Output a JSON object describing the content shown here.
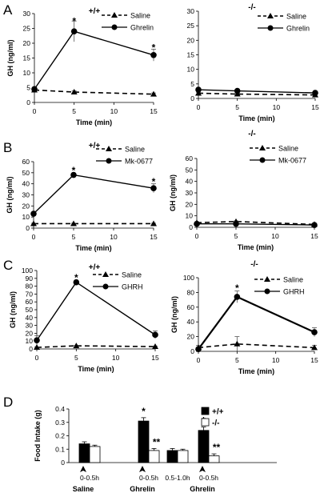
{
  "figure": {
    "panel_letters": [
      "A",
      "B",
      "C",
      "D"
    ]
  },
  "chart_data": [
    {
      "panel": "A",
      "genotype": "+/+",
      "type": "line",
      "x": [
        0,
        5,
        15
      ],
      "xticks": [
        0,
        5,
        10,
        15
      ],
      "xlabel": "Time (min)",
      "ylabel": "GH (ng/ml)",
      "ylim": [
        0,
        30
      ],
      "yticks": [
        0,
        5,
        10,
        15,
        20,
        25,
        30
      ],
      "legend": "top-right",
      "series": [
        {
          "name": "Saline",
          "style": "dashed-triangle",
          "values": [
            4.2,
            3.5,
            2.8
          ],
          "errors": [
            0.4,
            0.4,
            0.4
          ]
        },
        {
          "name": "Ghrelin",
          "style": "solid-circle",
          "values": [
            4.5,
            24,
            16
          ],
          "errors": [
            0.5,
            3.5,
            2
          ]
        }
      ],
      "annotations": [
        {
          "x": 5,
          "y": 27.5,
          "text": "*"
        },
        {
          "x": 15,
          "y": 18.5,
          "text": "*"
        }
      ]
    },
    {
      "panel": "A",
      "genotype": "-/-",
      "type": "line",
      "x": [
        0,
        5,
        15
      ],
      "xticks": [
        0,
        5,
        10,
        15
      ],
      "xlabel": "Time (min)",
      "ylabel": "",
      "ylim": [
        0,
        30
      ],
      "yticks": [
        0,
        5,
        10,
        15,
        20,
        25,
        30
      ],
      "legend": "top-right",
      "series": [
        {
          "name": "Saline",
          "style": "dashed-triangle",
          "values": [
            1.8,
            1.5,
            1.2
          ],
          "errors": [
            0.3,
            0.3,
            0.3
          ]
        },
        {
          "name": "Ghrelin",
          "style": "solid-circle",
          "values": [
            3,
            2.6,
            1.9
          ],
          "errors": [
            0.4,
            0.4,
            0.4
          ]
        }
      ],
      "annotations": []
    },
    {
      "panel": "B",
      "genotype": "+/+",
      "type": "line",
      "x": [
        0,
        5,
        15
      ],
      "xticks": [
        0,
        5,
        10,
        15
      ],
      "xlabel": "Time (min)",
      "ylabel": "GH (ng/ml)",
      "ylim": [
        0,
        60
      ],
      "yticks": [
        0,
        10,
        20,
        30,
        40,
        50,
        60
      ],
      "legend": "top-right",
      "series": [
        {
          "name": "Saline",
          "style": "dashed-triangle",
          "values": [
            4,
            4,
            4
          ],
          "errors": [
            0.4,
            0.4,
            0.4
          ]
        },
        {
          "name": "Mk-0677",
          "style": "solid-circle",
          "values": [
            13,
            48,
            36
          ],
          "errors": [
            1,
            1.5,
            4
          ]
        }
      ],
      "annotations": [
        {
          "x": 5,
          "y": 52,
          "text": "*"
        },
        {
          "x": 15,
          "y": 42,
          "text": "*"
        }
      ]
    },
    {
      "panel": "B",
      "genotype": "-/-",
      "type": "line",
      "x": [
        0,
        5,
        15
      ],
      "xticks": [
        0,
        5,
        10,
        15
      ],
      "xlabel": "Time (min)",
      "ylabel": "GH (ng/ml)",
      "ylim": [
        0,
        60
      ],
      "yticks": [
        0,
        10,
        20,
        30,
        40,
        50,
        60
      ],
      "legend": "top-right",
      "series": [
        {
          "name": "Saline",
          "style": "dashed-triangle",
          "values": [
            4,
            5,
            2.5
          ],
          "errors": [
            0.5,
            0.5,
            0.4
          ]
        },
        {
          "name": "Mk-0677",
          "style": "solid-circle",
          "values": [
            3,
            3,
            2
          ],
          "errors": [
            0.4,
            0.4,
            0.3
          ]
        }
      ],
      "annotations": []
    },
    {
      "panel": "C",
      "genotype": "+/+",
      "type": "line",
      "x": [
        0,
        5,
        15
      ],
      "xticks": [
        0,
        5,
        10,
        15
      ],
      "xlabel": "Time (min)",
      "ylabel": "GH (ng/ml)",
      "ylim": [
        0,
        100
      ],
      "yticks": [
        0,
        10,
        20,
        30,
        40,
        50,
        60,
        70,
        80,
        90,
        100
      ],
      "legend": "top-right",
      "series": [
        {
          "name": "Saline",
          "style": "dashed-triangle",
          "values": [
            2,
            4,
            3
          ],
          "errors": [
            0.5,
            0.5,
            0.5
          ]
        },
        {
          "name": "GHRH",
          "style": "solid-circle",
          "values": [
            11,
            85,
            18
          ],
          "errors": [
            6,
            1.5,
            5
          ]
        }
      ],
      "annotations": [
        {
          "x": 5,
          "y": 91,
          "text": "*"
        }
      ]
    },
    {
      "panel": "C",
      "genotype": "-/-",
      "type": "line",
      "x": [
        0,
        5,
        15
      ],
      "xticks": [
        0,
        5,
        10,
        15
      ],
      "xlabel": "Time (min)",
      "ylabel": "GH (ng/ml)",
      "ylim": [
        0,
        100
      ],
      "yticks": [
        0,
        20,
        40,
        60,
        80,
        100
      ],
      "legend": "top-right",
      "series": [
        {
          "name": "Saline",
          "style": "dashed-triangle",
          "values": [
            5,
            10,
            5
          ],
          "errors": [
            3,
            10,
            3
          ]
        },
        {
          "name": "GHRH",
          "style": "solid-circle",
          "values": [
            3,
            74,
            26
          ],
          "errors": [
            1,
            8,
            6
          ]
        }
      ],
      "annotations": [
        {
          "x": 5,
          "y": 86,
          "text": "*"
        }
      ]
    },
    {
      "panel": "D",
      "type": "bar",
      "ylabel": "Food Intake (g)",
      "ylim": [
        0,
        0.4
      ],
      "yticks": [
        "0",
        "0.1",
        "0.2",
        "0.3",
        "0.4"
      ],
      "legend": "top-center",
      "series": [
        {
          "name": "+/+",
          "color": "#000000",
          "values": [
            0.14,
            0.31,
            0.09,
            0.24
          ],
          "errors": [
            0.015,
            0.025,
            0.015,
            0.025
          ]
        },
        {
          "name": "-/-",
          "color": "#ffffff",
          "values": [
            0.12,
            0.09,
            0.09,
            0.05
          ],
          "errors": [
            0.01,
            0.015,
            0.01,
            0.015
          ]
        }
      ],
      "categories": [
        "0-0.5h",
        "0-0.5h",
        "0.5-1.0h",
        "0-0.5h"
      ],
      "treatments": [
        {
          "label": "Saline",
          "under": [
            0
          ]
        },
        {
          "label": "Ghrelin",
          "under": [
            1
          ]
        },
        {
          "label": "Ghrelin",
          "under": [
            3
          ]
        }
      ],
      "annotations": [
        {
          "group": 1,
          "series": 0,
          "text": "*"
        },
        {
          "group": 1,
          "series": 1,
          "text": "**"
        },
        {
          "group": 3,
          "series": 0,
          "text": "*"
        },
        {
          "group": 3,
          "series": 1,
          "text": "**"
        }
      ]
    }
  ]
}
